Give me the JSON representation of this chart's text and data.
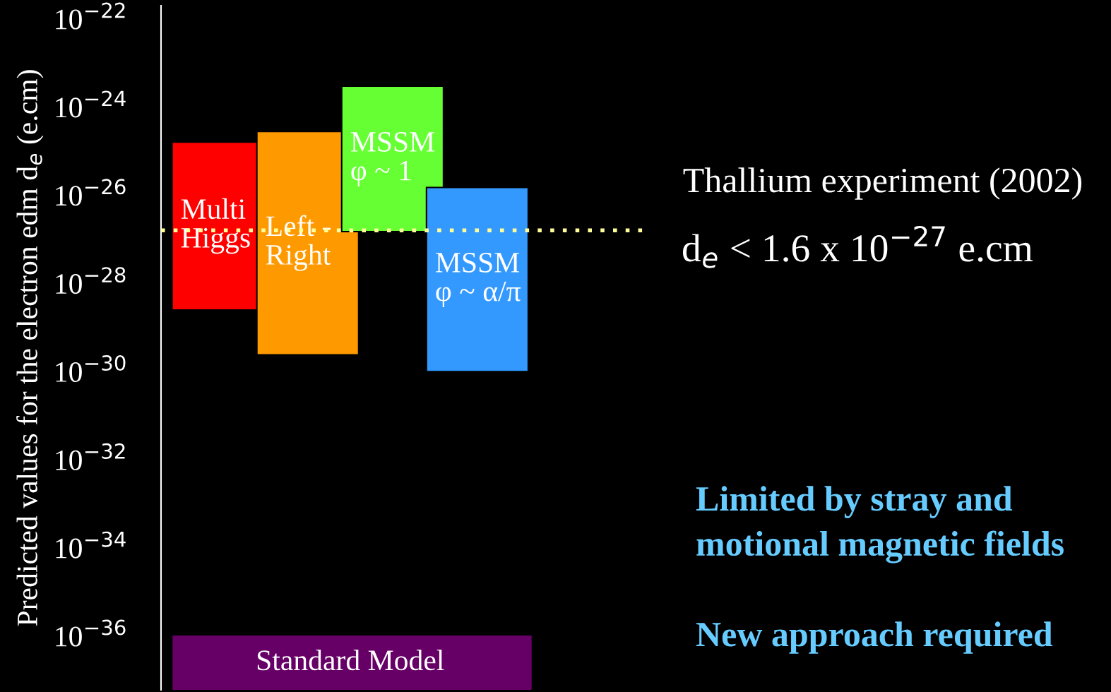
{
  "chart_data": {
    "type": "bar",
    "ylabel": "Predicted values for the electron edm d$_{e}$ (e.cm)",
    "categories": [
      "Multi\nHiggs",
      "Left -\nRight",
      "MSSM\nφ ~ 1",
      "MSSM\nφ ~ α/π"
    ],
    "base": [
      2.5e-29,
      2.4e-30,
      1.5e-27,
      1e-30
    ],
    "values": [
      1.6e-25,
      2.8e-25,
      3e-24,
      1.5e-26
    ],
    "colors": [
      "#ff0000",
      "#ff9900",
      "#66ff33",
      "#3399ff"
    ],
    "log": true,
    "ylim": [
      6e-38,
      2e-22
    ],
    "yticks": [
      {
        "value": 1e-22,
        "label": "10$^{−22}$"
      },
      {
        "value": 1e-24,
        "label": "10$^{−24}$"
      },
      {
        "value": 1e-26,
        "label": "10$^{−26}$"
      },
      {
        "value": 1e-28,
        "label": "10$^{−28}$"
      },
      {
        "value": 1e-30,
        "label": "10$^{−30}$"
      },
      {
        "value": 1e-32,
        "label": "10$^{−32}$"
      },
      {
        "value": 1e-34,
        "label": "10$^{−34}$"
      },
      {
        "value": 1e-36,
        "label": "10$^{−36}$"
      }
    ],
    "tick_labels": "y",
    "grid": false,
    "legend": false,
    "ref_lines": [
      {
        "axis": "y",
        "value": 1.6e-27,
        "label": "d$_{e}$ < 1.6 x 10$^{−27}$ e.cm",
        "color": "#ffff99",
        "line_style": "dotted"
      }
    ],
    "bands": [
      {
        "axis": "y",
        "from": 6e-38,
        "to": 1e-36,
        "label": "Standard Model",
        "color": "#660066"
      }
    ],
    "annotations": [
      "Thallium experiment (2002)",
      "Limited by stray and\nmotional magnetic fields",
      "New approach required"
    ]
  }
}
